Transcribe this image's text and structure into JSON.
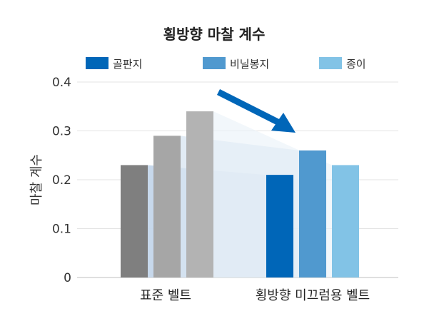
{
  "chart_data": {
    "type": "bar",
    "title": "횡방향 마찰 계수",
    "xlabel": "",
    "ylabel": "마찰 계수",
    "ylim": [
      0,
      0.4
    ],
    "yticks": [
      "0",
      "0.1",
      "0.2",
      "0.3",
      "0.4"
    ],
    "grid": true,
    "legend_position": "top",
    "categories": [
      "표준 벨트",
      "횡방향 미끄럼용 벨트"
    ],
    "series": [
      {
        "name": "골판지",
        "values": [
          0.23,
          0.21
        ],
        "color_standard": "#7f7f7f",
        "color": "#0066b8"
      },
      {
        "name": "비닐봉지",
        "values": [
          0.29,
          0.26
        ],
        "color_standard": "#a6a6a6",
        "color": "#5099cf"
      },
      {
        "name": "종이",
        "values": [
          0.34,
          0.23
        ],
        "color_standard": "#b3b3b3",
        "color": "#82c3e6"
      }
    ],
    "annotation_arrow_color": "#0066b8"
  }
}
